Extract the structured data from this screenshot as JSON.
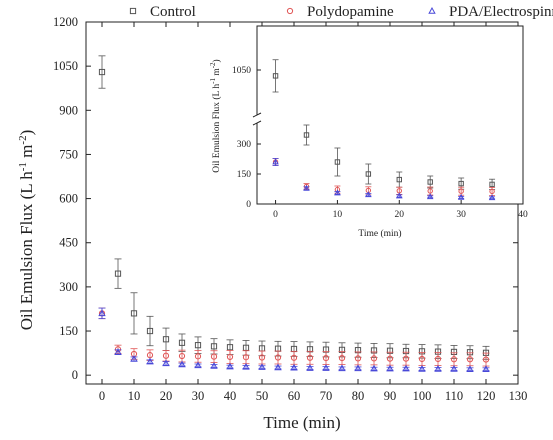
{
  "chart_data": [
    {
      "type": "scatter",
      "title": "",
      "xlabel": "Time (min)",
      "ylabel_parts": {
        "main": "Oil Emulsion Flux (L h",
        "sup1": "-1",
        "mid": " m",
        "sup2": "-2",
        "end": ")"
      },
      "xlim": [
        -5,
        130
      ],
      "ylim": [
        -30,
        1200
      ],
      "x_ticks": [
        0,
        10,
        20,
        30,
        40,
        50,
        60,
        70,
        80,
        90,
        100,
        110,
        120,
        130
      ],
      "y_ticks": [
        0,
        150,
        300,
        450,
        600,
        750,
        900,
        1050,
        1200
      ],
      "legend_placement": "top, above plot",
      "error_bars": true,
      "series": [
        {
          "name": "Control",
          "color": "#555555",
          "marker": "open-square",
          "x": [
            0,
            5,
            10,
            15,
            20,
            25,
            30,
            35,
            40,
            45,
            50,
            55,
            60,
            65,
            70,
            75,
            80,
            85,
            90,
            95,
            100,
            105,
            110,
            115,
            120
          ],
          "y": [
            1030,
            345,
            210,
            150,
            122,
            110,
            102,
            98,
            95,
            93,
            91,
            90,
            89,
            88,
            87,
            86,
            85,
            84,
            83,
            82,
            81,
            80,
            79,
            78,
            76
          ],
          "err": [
            55,
            50,
            70,
            50,
            38,
            30,
            28,
            26,
            25,
            25,
            25,
            25,
            25,
            25,
            25,
            24,
            24,
            24,
            24,
            23,
            23,
            23,
            22,
            22,
            22
          ]
        },
        {
          "name": "Polydopamine",
          "color": "#e05555",
          "marker": "open-circle",
          "x": [
            0,
            5,
            10,
            15,
            20,
            25,
            30,
            35,
            40,
            45,
            50,
            55,
            60,
            65,
            70,
            75,
            80,
            85,
            90,
            95,
            100,
            105,
            110,
            115,
            120
          ],
          "y": [
            210,
            88,
            72,
            68,
            66,
            65,
            64,
            63,
            62,
            61,
            60,
            60,
            59,
            59,
            58,
            58,
            57,
            57,
            56,
            56,
            55,
            55,
            54,
            54,
            53
          ],
          "err": [
            18,
            14,
            18,
            18,
            18,
            20,
            20,
            20,
            22,
            22,
            22,
            22,
            22,
            22,
            22,
            22,
            22,
            22,
            22,
            22,
            22,
            22,
            22,
            22,
            22
          ]
        },
        {
          "name": "PDA/Electrospinning",
          "color": "#4848d8",
          "marker": "open-triangle",
          "x": [
            0,
            5,
            10,
            15,
            20,
            25,
            30,
            35,
            40,
            45,
            50,
            55,
            60,
            65,
            70,
            75,
            80,
            85,
            90,
            95,
            100,
            105,
            110,
            115,
            120
          ],
          "y": [
            210,
            78,
            55,
            46,
            40,
            36,
            33,
            31,
            29,
            28,
            27,
            26,
            25,
            24,
            24,
            23,
            23,
            22,
            22,
            22,
            21,
            21,
            21,
            20,
            20
          ],
          "err": [
            18,
            8,
            7,
            6,
            6,
            5,
            5,
            5,
            5,
            5,
            5,
            5,
            5,
            5,
            5,
            5,
            5,
            5,
            5,
            5,
            5,
            5,
            5,
            5,
            5
          ]
        }
      ]
    },
    {
      "type": "scatter",
      "title": "",
      "xlabel": "Time (min)",
      "ylabel_parts": {
        "main": "Oil Emulsion Flux (L h",
        "sup1": "-1",
        "mid": " m",
        "sup2": "-2",
        "end": ")"
      },
      "xlim": [
        -3,
        40
      ],
      "y_axis_break": true,
      "ylim_lower": [
        0,
        400
      ],
      "ylim_upper": [
        900,
        1200
      ],
      "x_ticks": [
        0,
        10,
        20,
        30,
        40
      ],
      "y_ticks_lower": [
        0,
        150,
        300
      ],
      "y_ticks_upper": [
        1050
      ],
      "error_bars": true,
      "series": [
        {
          "name": "Control",
          "color": "#555555",
          "marker": "open-square",
          "x": [
            0,
            5,
            10,
            15,
            20,
            25,
            30,
            35
          ],
          "y": [
            1030,
            345,
            210,
            150,
            122,
            110,
            102,
            98
          ],
          "err": [
            55,
            50,
            70,
            50,
            38,
            30,
            28,
            26
          ]
        },
        {
          "name": "Polydopamine",
          "color": "#e05555",
          "marker": "open-circle",
          "x": [
            0,
            5,
            10,
            15,
            20,
            25,
            30,
            35
          ],
          "y": [
            210,
            88,
            72,
            68,
            66,
            65,
            64,
            63
          ],
          "err": [
            18,
            14,
            18,
            18,
            18,
            20,
            20,
            20
          ]
        },
        {
          "name": "PDA/Electrospinning",
          "color": "#4848d8",
          "marker": "open-triangle",
          "x": [
            0,
            5,
            10,
            15,
            20,
            25,
            30,
            35
          ],
          "y": [
            210,
            78,
            55,
            46,
            40,
            36,
            33,
            31
          ],
          "err": [
            18,
            8,
            7,
            6,
            6,
            5,
            5,
            5
          ]
        }
      ]
    }
  ]
}
